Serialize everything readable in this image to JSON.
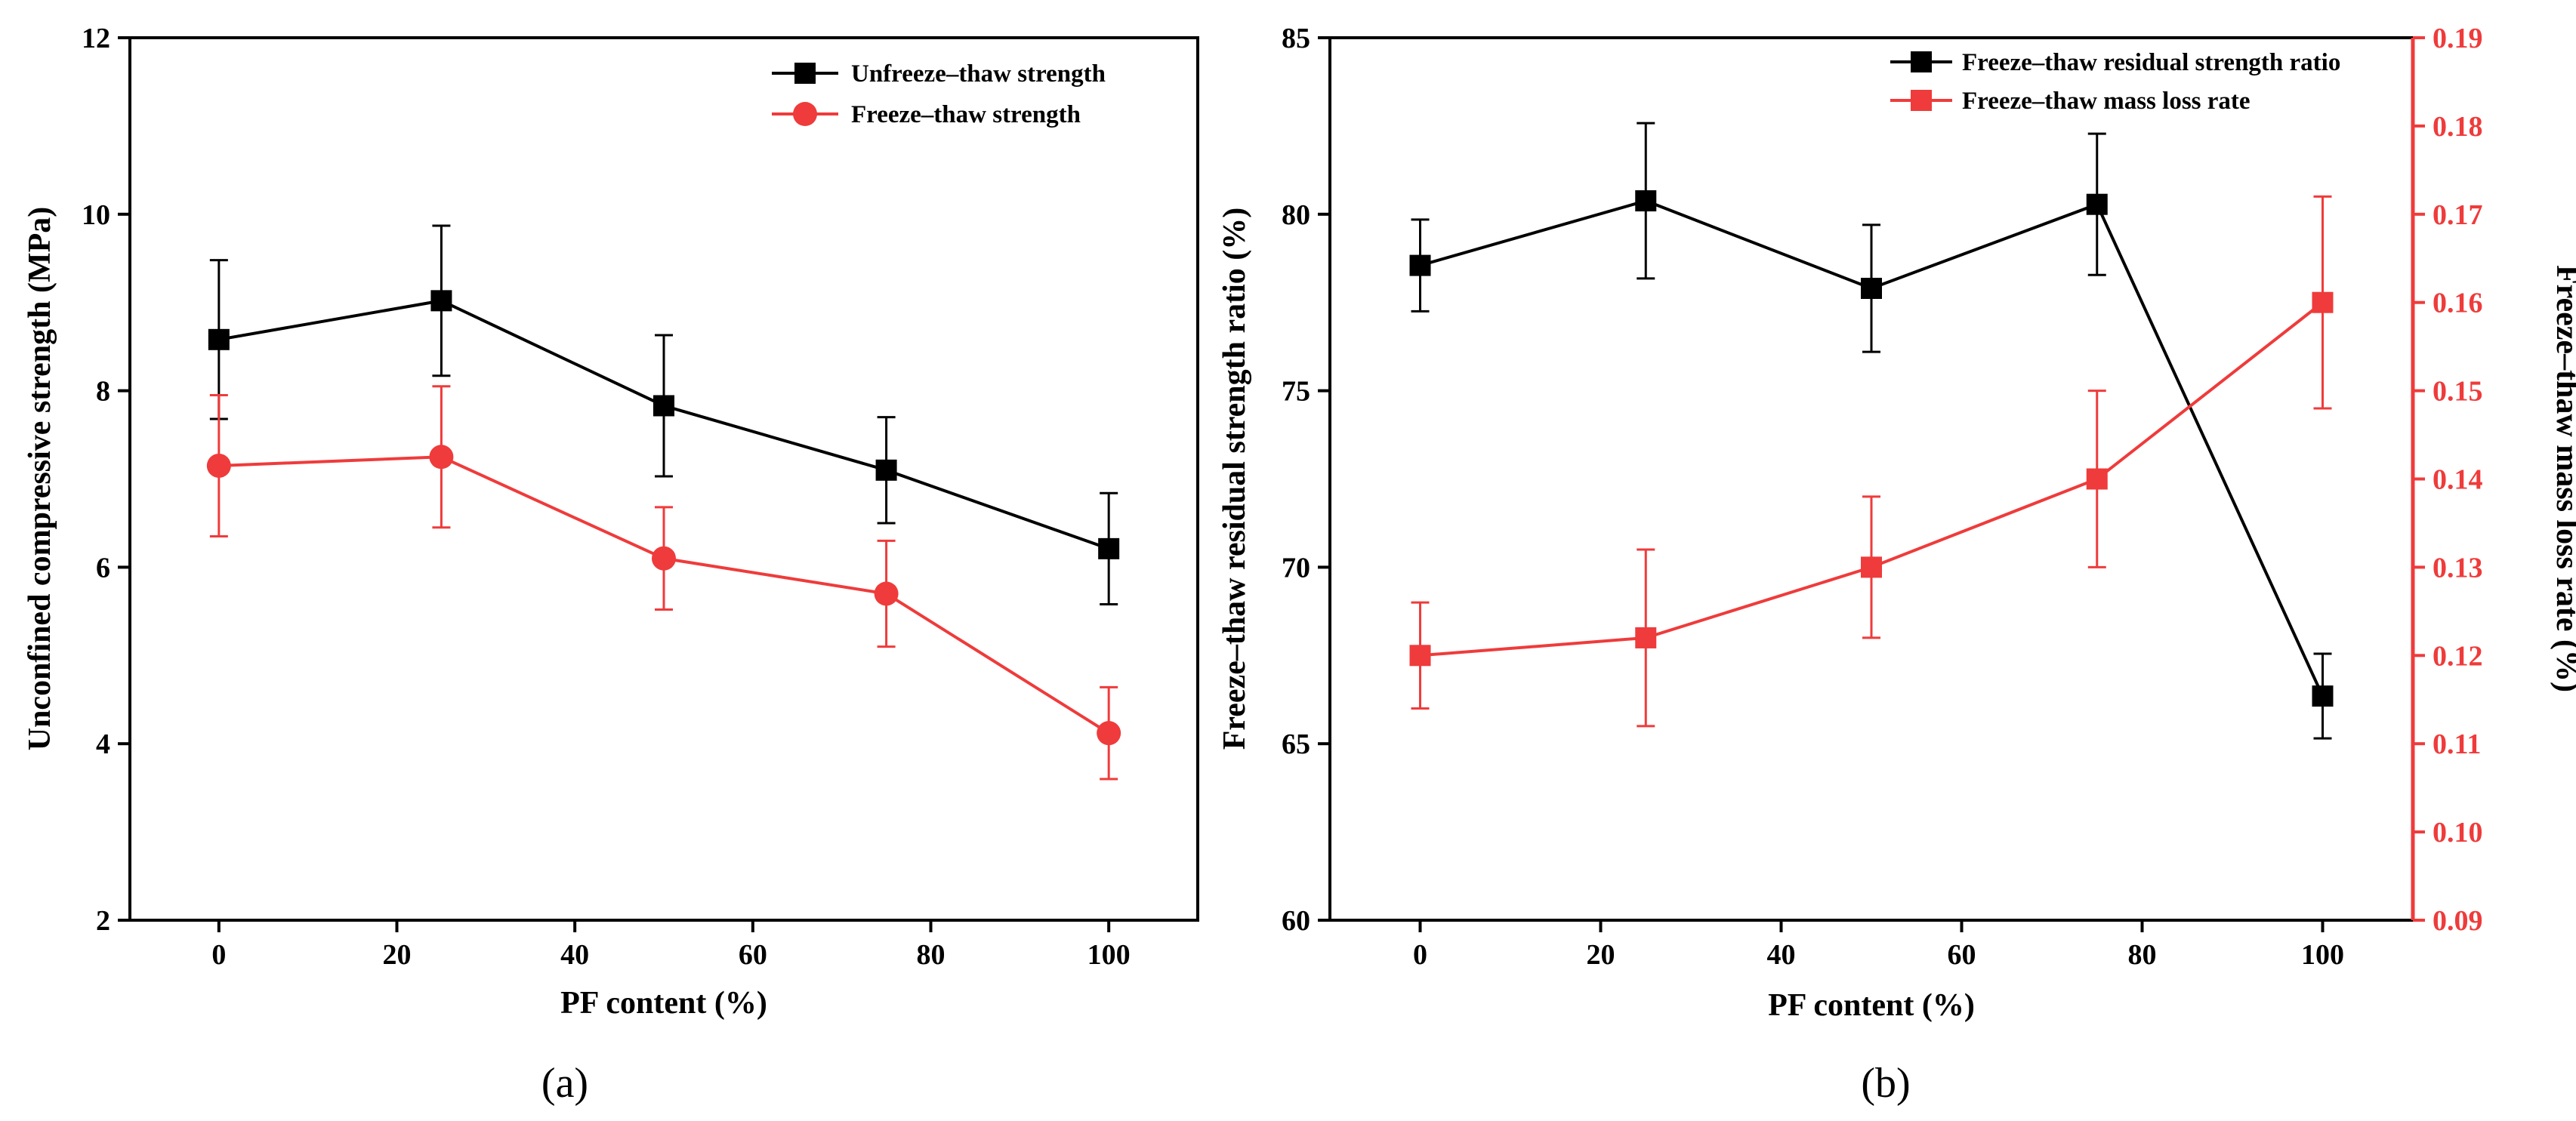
{
  "chart_data": [
    {
      "type": "line",
      "panel_label": "(a)",
      "xlabel": "PF content (%)",
      "ylabel": "Unconfined compressive strength (MPa)",
      "xlim": [
        -10,
        110
      ],
      "ylim": [
        2,
        12
      ],
      "x_ticks": [
        0,
        20,
        40,
        60,
        80,
        100
      ],
      "y_ticks": [
        2,
        4,
        6,
        8,
        10,
        12
      ],
      "legend_position": "top-right",
      "series": [
        {
          "name": "Unfreeze–thaw strength",
          "color": "#000000",
          "marker": "square",
          "x": [
            0,
            25,
            50,
            75,
            100
          ],
          "values": [
            8.58,
            9.02,
            7.83,
            7.1,
            6.21
          ],
          "errors": [
            0.9,
            0.85,
            0.8,
            0.6,
            0.63
          ]
        },
        {
          "name": "Freeze–thaw strength",
          "color": "#ef3b3b",
          "marker": "circle",
          "x": [
            0,
            25,
            50,
            75,
            100
          ],
          "values": [
            7.15,
            7.25,
            6.1,
            5.7,
            4.12
          ],
          "errors": [
            0.8,
            0.8,
            0.58,
            0.6,
            0.52
          ]
        }
      ]
    },
    {
      "type": "line",
      "panel_label": "(b)",
      "xlabel": "PF content (%)",
      "ylabel": "Freeze–thaw residual strength ratio (%)",
      "ylabel_right": "Freeze–thaw mass loss rate (%)",
      "xlim": [
        -10,
        110
      ],
      "ylim": [
        60,
        85
      ],
      "ylim_right": [
        0.09,
        0.19
      ],
      "x_ticks": [
        0,
        20,
        40,
        60,
        80,
        100
      ],
      "y_ticks": [
        60,
        65,
        70,
        75,
        80,
        85
      ],
      "y_ticks_right": [
        "0.09",
        "0.10",
        "0.11",
        "0.12",
        "0.13",
        "0.14",
        "0.15",
        "0.16",
        "0.17",
        "0.18",
        "0.19"
      ],
      "legend_position": "top-right",
      "series": [
        {
          "name": "Freeze–thaw residual strength ratio",
          "axis": "left",
          "color": "#000000",
          "marker": "square",
          "x": [
            0,
            25,
            50,
            75,
            100
          ],
          "values": [
            78.55,
            80.38,
            77.9,
            80.28,
            66.35
          ],
          "errors": [
            1.3,
            2.2,
            1.8,
            2.0,
            1.2
          ]
        },
        {
          "name": "Freeze–thaw mass loss rate",
          "axis": "right",
          "color": "#ef3b3b",
          "marker": "square",
          "x": [
            0,
            25,
            50,
            75,
            100
          ],
          "values": [
            0.12,
            0.122,
            0.13,
            0.14,
            0.16
          ],
          "errors": [
            0.006,
            0.01,
            0.008,
            0.01,
            0.012
          ]
        }
      ]
    }
  ]
}
